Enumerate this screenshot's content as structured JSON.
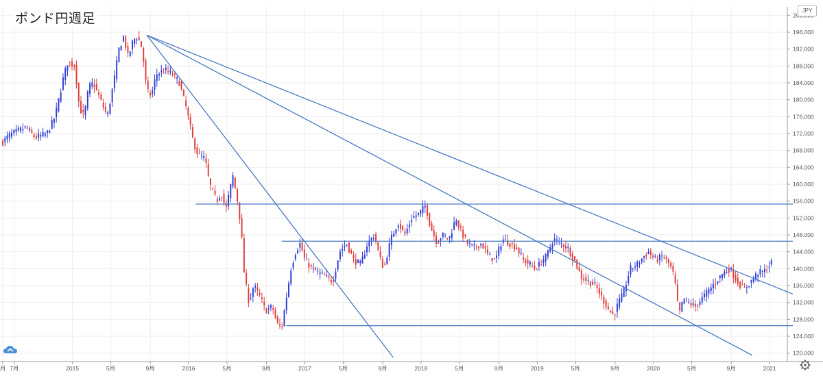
{
  "chart_data": {
    "type": "candlestick",
    "title": "ポンド円週足",
    "currency": "JPY",
    "x_axis": {
      "ticks": [
        {
          "label": "月",
          "date": "2014.40"
        },
        {
          "label": "7月",
          "date": "2014.50"
        },
        {
          "label": "2015",
          "date": "2015.00"
        },
        {
          "label": "5月",
          "date": "2015.33"
        },
        {
          "label": "9月",
          "date": "2015.67"
        },
        {
          "label": "2016",
          "date": "2016.00"
        },
        {
          "label": "5月",
          "date": "2016.33"
        },
        {
          "label": "9月",
          "date": "2016.67"
        },
        {
          "label": "2017",
          "date": "2017.00"
        },
        {
          "label": "5月",
          "date": "2017.33"
        },
        {
          "label": "9月",
          "date": "2017.67"
        },
        {
          "label": "2018",
          "date": "2018.00"
        },
        {
          "label": "5月",
          "date": "2018.33"
        },
        {
          "label": "9月",
          "date": "2018.67"
        },
        {
          "label": "2019",
          "date": "2019.00"
        },
        {
          "label": "5月",
          "date": "2019.33"
        },
        {
          "label": "9月",
          "date": "2019.67"
        },
        {
          "label": "2020",
          "date": "2020.00"
        },
        {
          "label": "5月",
          "date": "2020.33"
        },
        {
          "label": "9月",
          "date": "2020.67"
        },
        {
          "label": "2021",
          "date": "2021.00"
        }
      ]
    },
    "y_axis": {
      "min": 118,
      "max": 202,
      "ticks": [
        "120.000",
        "124.000",
        "128.000",
        "132.000",
        "136.000",
        "140.000",
        "144.000",
        "148.000",
        "152.000",
        "156.000",
        "160.000",
        "164.000",
        "168.000",
        "172.000",
        "176.000",
        "180.000",
        "184.000",
        "188.000",
        "192.000",
        "196.000",
        "200.000"
      ]
    },
    "grid": true,
    "colors": {
      "up": "#2e3bd6",
      "down": "#e03a3a",
      "lines": "#4a78c4",
      "grid": "#eeeeee"
    },
    "price_path": [
      [
        "2014.40",
        170.0
      ],
      [
        "2014.45",
        171.5
      ],
      [
        "2014.52",
        172.5
      ],
      [
        "2014.60",
        173.5
      ],
      [
        "2014.68",
        171.0
      ],
      [
        "2014.78",
        172.0
      ],
      [
        "2014.85",
        176.0
      ],
      [
        "2014.92",
        185.0
      ],
      [
        "2014.96",
        189.0
      ],
      [
        "2015.02",
        188.0
      ],
      [
        "2015.06",
        178.0
      ],
      [
        "2015.10",
        176.0
      ],
      [
        "2015.14",
        183.0
      ],
      [
        "2015.18",
        184.0
      ],
      [
        "2015.24",
        180.0
      ],
      [
        "2015.30",
        176.0
      ],
      [
        "2015.36",
        185.0
      ],
      [
        "2015.40",
        192.0
      ],
      [
        "2015.44",
        195.0
      ],
      [
        "2015.48",
        190.0
      ],
      [
        "2015.52",
        194.0
      ],
      [
        "2015.56",
        195.0
      ],
      [
        "2015.60",
        192.0
      ],
      [
        "2015.64",
        182.0
      ],
      [
        "2015.68",
        181.0
      ],
      [
        "2015.72",
        186.0
      ],
      [
        "2015.80",
        187.0
      ],
      [
        "2015.86",
        186.0
      ],
      [
        "2015.92",
        184.0
      ],
      [
        "2015.98",
        178.0
      ],
      [
        "2016.04",
        170.0
      ],
      [
        "2016.08",
        167.0
      ],
      [
        "2016.14",
        166.0
      ],
      [
        "2016.18",
        160.0
      ],
      [
        "2016.24",
        156.0
      ],
      [
        "2016.28",
        158.0
      ],
      [
        "2016.32",
        154.0
      ],
      [
        "2016.38",
        162.0
      ],
      [
        "2016.42",
        156.0
      ],
      [
        "2016.45",
        150.0
      ],
      [
        "2016.48",
        138.0
      ],
      [
        "2016.52",
        132.0
      ],
      [
        "2016.56",
        136.0
      ],
      [
        "2016.62",
        133.0
      ],
      [
        "2016.66",
        130.0
      ],
      [
        "2016.72",
        131.0
      ],
      [
        "2016.76",
        127.0
      ],
      [
        "2016.80",
        126.0
      ],
      [
        "2016.84",
        133.0
      ],
      [
        "2016.88",
        140.0
      ],
      [
        "2016.92",
        144.0
      ],
      [
        "2016.96",
        146.0
      ],
      [
        "2017.00",
        142.0
      ],
      [
        "2017.06",
        140.0
      ],
      [
        "2017.12",
        139.0
      ],
      [
        "2017.18",
        138.0
      ],
      [
        "2017.24",
        137.0
      ],
      [
        "2017.30",
        144.0
      ],
      [
        "2017.36",
        146.0
      ],
      [
        "2017.42",
        142.0
      ],
      [
        "2017.48",
        141.0
      ],
      [
        "2017.54",
        146.0
      ],
      [
        "2017.60",
        148.0
      ],
      [
        "2017.64",
        143.0
      ],
      [
        "2017.68",
        140.0
      ],
      [
        "2017.74",
        147.0
      ],
      [
        "2017.80",
        151.0
      ],
      [
        "2017.86",
        148.0
      ],
      [
        "2017.92",
        152.0
      ],
      [
        "2017.98",
        153.0
      ],
      [
        "2018.04",
        155.0
      ],
      [
        "2018.08",
        150.0
      ],
      [
        "2018.14",
        146.0
      ],
      [
        "2018.18",
        148.0
      ],
      [
        "2018.24",
        147.0
      ],
      [
        "2018.30",
        152.0
      ],
      [
        "2018.34",
        149.0
      ],
      [
        "2018.40",
        146.0
      ],
      [
        "2018.46",
        145.0
      ],
      [
        "2018.52",
        146.0
      ],
      [
        "2018.58",
        143.0
      ],
      [
        "2018.64",
        142.0
      ],
      [
        "2018.70",
        147.0
      ],
      [
        "2018.76",
        146.0
      ],
      [
        "2018.82",
        145.0
      ],
      [
        "2018.88",
        142.0
      ],
      [
        "2018.94",
        141.0
      ],
      [
        "2018.98",
        140.0
      ],
      [
        "2019.02",
        141.0
      ],
      [
        "2019.08",
        143.0
      ],
      [
        "2019.14",
        147.0
      ],
      [
        "2019.20",
        146.0
      ],
      [
        "2019.26",
        145.0
      ],
      [
        "2019.32",
        142.0
      ],
      [
        "2019.38",
        138.0
      ],
      [
        "2019.44",
        137.0
      ],
      [
        "2019.50",
        136.0
      ],
      [
        "2019.56",
        133.0
      ],
      [
        "2019.62",
        130.0
      ],
      [
        "2019.66",
        129.0
      ],
      [
        "2019.70",
        132.0
      ],
      [
        "2019.74",
        134.0
      ],
      [
        "2019.80",
        140.0
      ],
      [
        "2019.86",
        141.0
      ],
      [
        "2019.92",
        143.0
      ],
      [
        "2019.96",
        144.0
      ],
      [
        "2020.02",
        142.0
      ],
      [
        "2020.08",
        143.0
      ],
      [
        "2020.14",
        141.0
      ],
      [
        "2020.18",
        138.0
      ],
      [
        "2020.22",
        129.0
      ],
      [
        "2020.26",
        133.0
      ],
      [
        "2020.30",
        132.0
      ],
      [
        "2020.36",
        131.0
      ],
      [
        "2020.42",
        133.0
      ],
      [
        "2020.48",
        135.0
      ],
      [
        "2020.54",
        137.0
      ],
      [
        "2020.60",
        139.0
      ],
      [
        "2020.66",
        140.0
      ],
      [
        "2020.72",
        137.0
      ],
      [
        "2020.78",
        135.0
      ],
      [
        "2020.84",
        137.0
      ],
      [
        "2020.90",
        139.0
      ],
      [
        "2020.96",
        139.5
      ],
      [
        "2021.02",
        141.5
      ]
    ],
    "trend_lines": [
      {
        "start": [
          "2015.64",
          195.3
        ],
        "end": [
          "2017.76",
          119.0
        ]
      },
      {
        "start": [
          "2015.64",
          195.3
        ],
        "end": [
          "2020.85",
          119.5
        ]
      },
      {
        "start": [
          "2015.64",
          195.3
        ],
        "end": [
          "2021.20",
          134.0
        ]
      },
      {
        "start": [
          "2016.06",
          155.3
        ],
        "end": [
          "2021.20",
          155.3
        ]
      },
      {
        "start": [
          "2016.80",
          146.5
        ],
        "end": [
          "2021.20",
          146.5
        ]
      },
      {
        "start": [
          "2016.84",
          126.5
        ],
        "end": [
          "2021.20",
          126.5
        ]
      }
    ]
  },
  "icons": {
    "gear": "gear-icon",
    "cloud": "cloud-icon"
  }
}
